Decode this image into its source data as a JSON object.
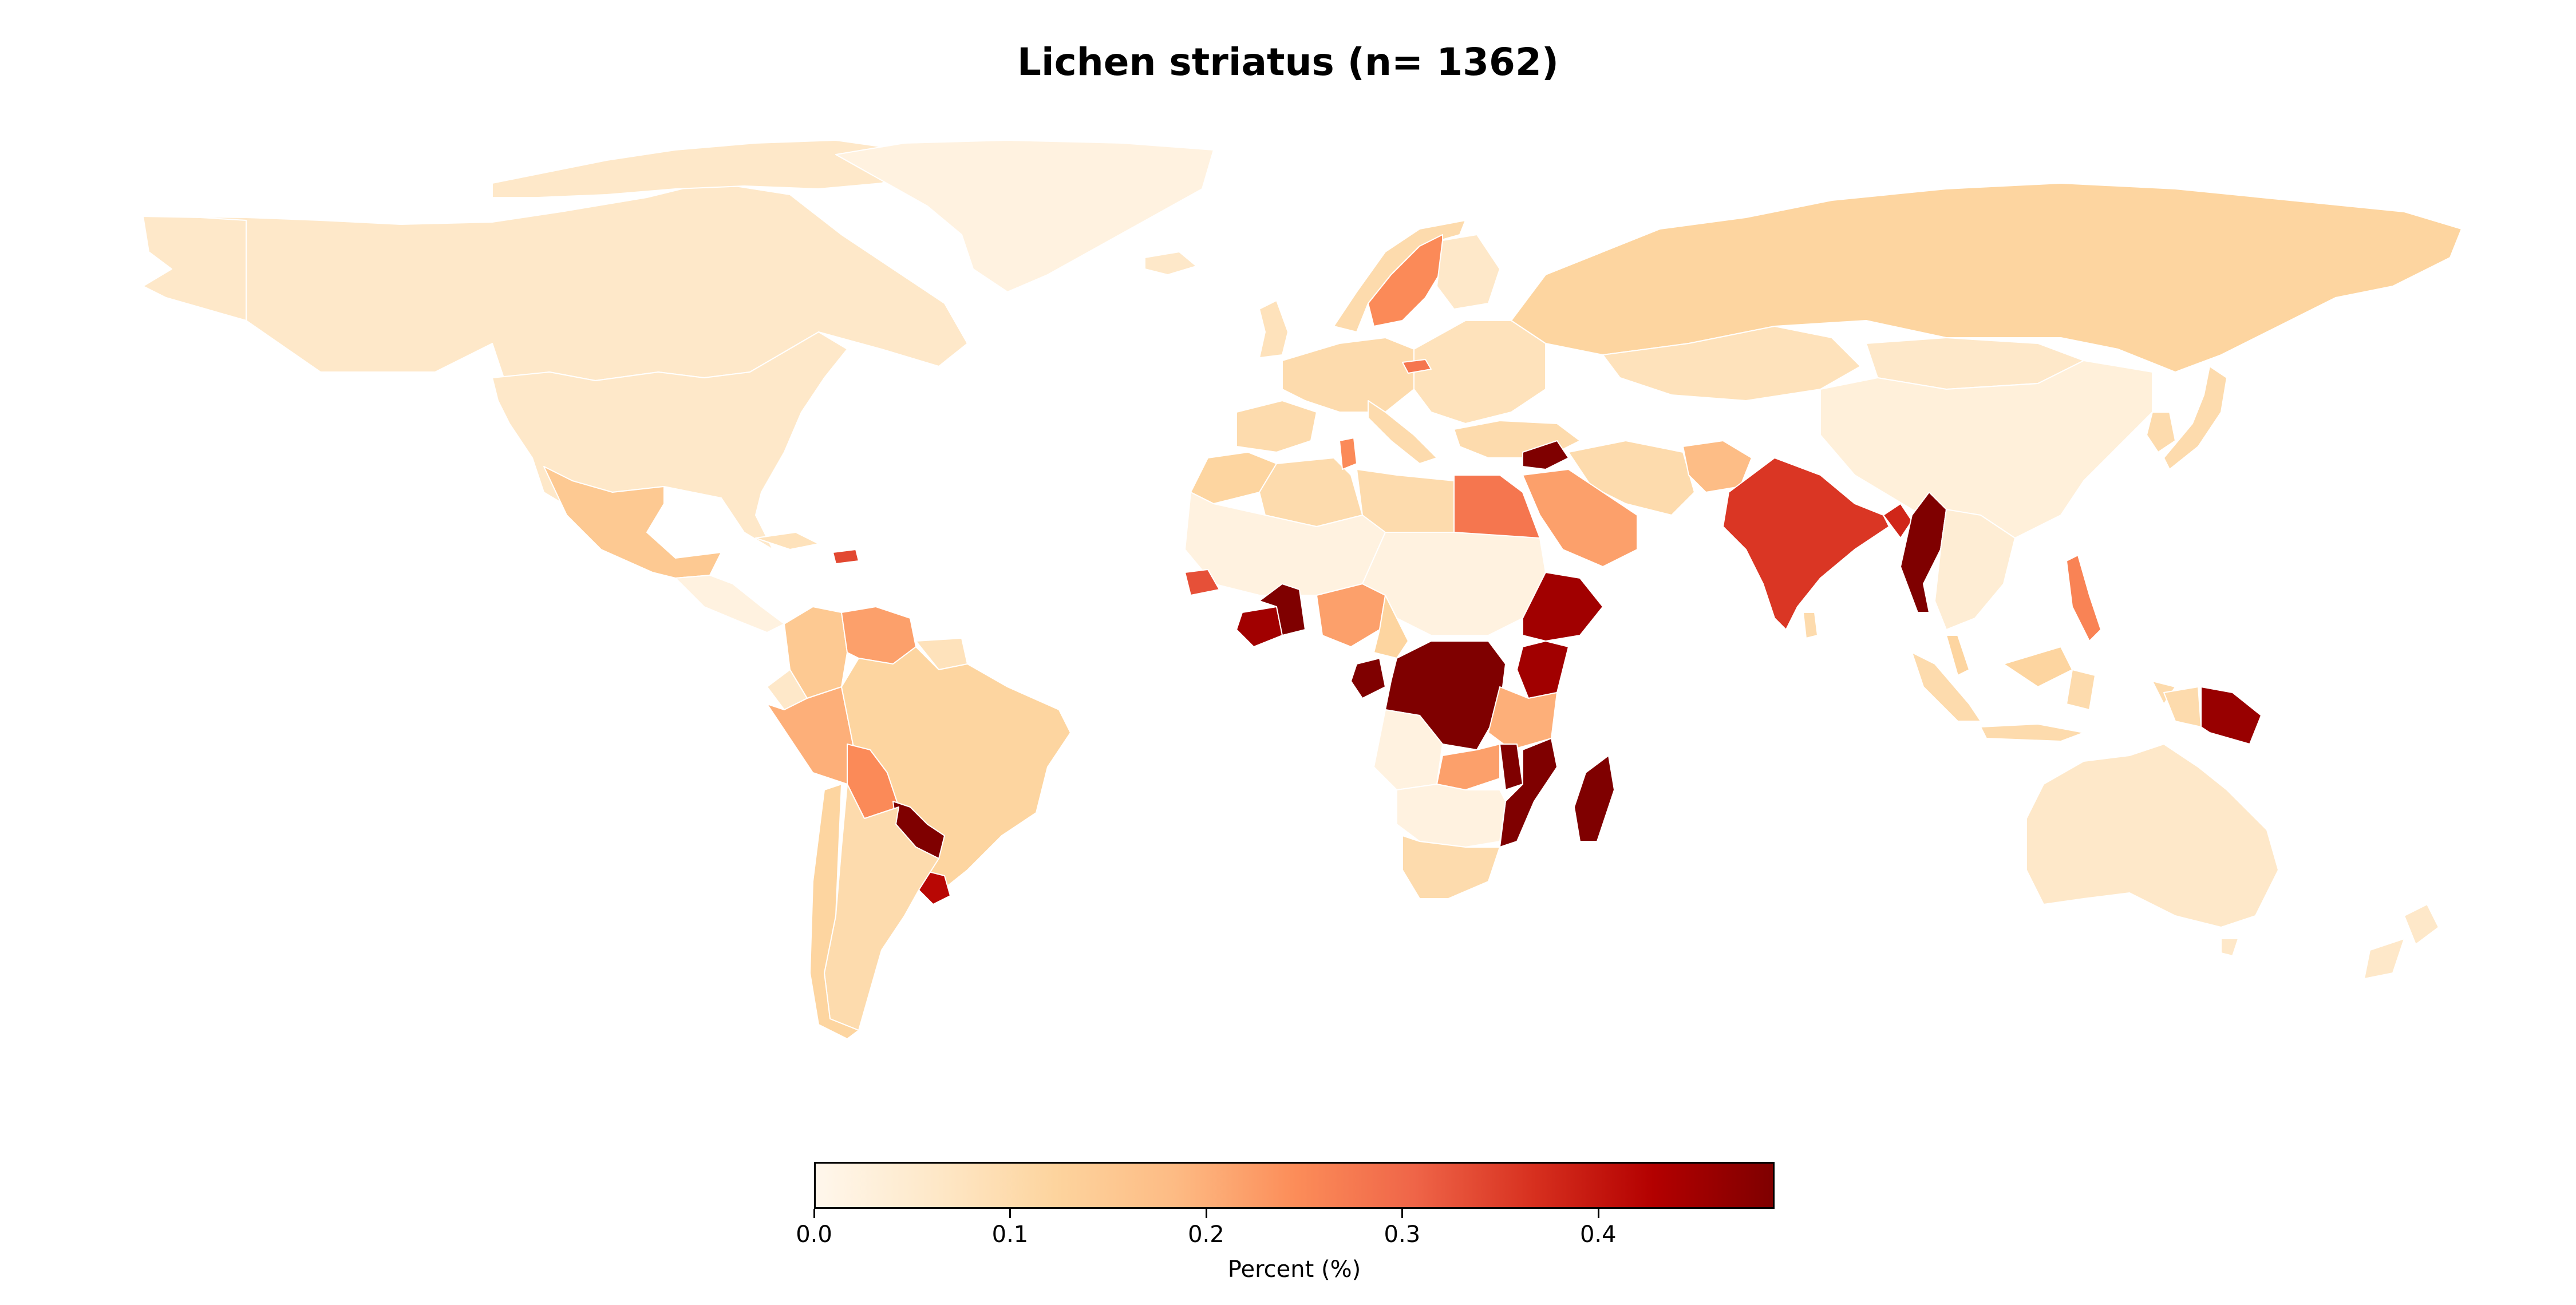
{
  "title": "Lichen striatus (n= 1362)",
  "colorbar": {
    "label": "Percent (%)",
    "min": 0.0,
    "max": 0.49,
    "ticks": [
      {
        "value": 0.0,
        "label": "0.0"
      },
      {
        "value": 0.1,
        "label": "0.1"
      },
      {
        "value": 0.2,
        "label": "0.2"
      },
      {
        "value": 0.3,
        "label": "0.3"
      },
      {
        "value": 0.4,
        "label": "0.4"
      }
    ],
    "colormap": [
      "#fff7ec",
      "#fee8c8",
      "#fdd49e",
      "#fdbb84",
      "#fc8d59",
      "#ef6548",
      "#d7301f",
      "#b30000",
      "#7f0000"
    ]
  },
  "regions": [
    {
      "name": "Canada",
      "value": 0.06
    },
    {
      "name": "United States",
      "value": 0.06
    },
    {
      "name": "Greenland",
      "value": 0.02
    },
    {
      "name": "Mexico",
      "value": 0.15
    },
    {
      "name": "Central America",
      "value": 0.02
    },
    {
      "name": "Cuba",
      "value": 0.08
    },
    {
      "name": "Dominican Republic",
      "value": 0.34
    },
    {
      "name": "Colombia",
      "value": 0.15
    },
    {
      "name": "Venezuela",
      "value": 0.22
    },
    {
      "name": "Guyana",
      "value": 0.08
    },
    {
      "name": "Ecuador",
      "value": 0.06
    },
    {
      "name": "Peru",
      "value": 0.2
    },
    {
      "name": "Brazil",
      "value": 0.12
    },
    {
      "name": "Bolivia",
      "value": 0.25
    },
    {
      "name": "Paraguay",
      "value": 0.49
    },
    {
      "name": "Uruguay",
      "value": 0.42
    },
    {
      "name": "Argentina",
      "value": 0.1
    },
    {
      "name": "Chile",
      "value": 0.12
    },
    {
      "name": "Iceland",
      "value": 0.06
    },
    {
      "name": "United Kingdom",
      "value": 0.08
    },
    {
      "name": "Norway",
      "value": 0.1
    },
    {
      "name": "Sweden",
      "value": 0.25
    },
    {
      "name": "Finland",
      "value": 0.06
    },
    {
      "name": "Western Europe",
      "value": 0.1
    },
    {
      "name": "Spain",
      "value": 0.1
    },
    {
      "name": "Eastern Europe",
      "value": 0.08
    },
    {
      "name": "Hungary",
      "value": 0.28
    },
    {
      "name": "Italy",
      "value": 0.1
    },
    {
      "name": "Turkey",
      "value": 0.1
    },
    {
      "name": "Russia",
      "value": 0.12
    },
    {
      "name": "Kazakhstan",
      "value": 0.08
    },
    {
      "name": "Mongolia",
      "value": 0.06
    },
    {
      "name": "China",
      "value": 0.03
    },
    {
      "name": "Japan",
      "value": 0.1
    },
    {
      "name": "Korea",
      "value": 0.1
    },
    {
      "name": "Syria",
      "value": 0.49
    },
    {
      "name": "Iran",
      "value": 0.1
    },
    {
      "name": "Afghanistan",
      "value": 0.18
    },
    {
      "name": "Saudi Arabia",
      "value": 0.22
    },
    {
      "name": "Egypt",
      "value": 0.28
    },
    {
      "name": "Morocco",
      "value": 0.12
    },
    {
      "name": "Algeria",
      "value": 0.1
    },
    {
      "name": "Tunisia",
      "value": 0.25
    },
    {
      "name": "Libya",
      "value": 0.1
    },
    {
      "name": "West Sahel",
      "value": 0.02
    },
    {
      "name": "Senegal",
      "value": 0.33
    },
    {
      "name": "Ivory Coast",
      "value": 0.45
    },
    {
      "name": "Ghana",
      "value": 0.49
    },
    {
      "name": "Nigeria",
      "value": 0.22
    },
    {
      "name": "Chad-Sudan",
      "value": 0.02
    },
    {
      "name": "Cameroon",
      "value": 0.12
    },
    {
      "name": "Gabon",
      "value": 0.49
    },
    {
      "name": "DR Congo",
      "value": 0.49
    },
    {
      "name": "Ethiopia",
      "value": 0.45
    },
    {
      "name": "Kenya",
      "value": 0.45
    },
    {
      "name": "Tanzania",
      "value": 0.2
    },
    {
      "name": "Zambia",
      "value": 0.22
    },
    {
      "name": "Malawi",
      "value": 0.49
    },
    {
      "name": "Mozambique",
      "value": 0.49
    },
    {
      "name": "Madagascar",
      "value": 0.49
    },
    {
      "name": "Angola",
      "value": 0.02
    },
    {
      "name": "Southern Africa",
      "value": 0.02
    },
    {
      "name": "South Africa",
      "value": 0.1
    },
    {
      "name": "India",
      "value": 0.36
    },
    {
      "name": "Bangladesh",
      "value": 0.38
    },
    {
      "name": "Myanmar",
      "value": 0.49
    },
    {
      "name": "Southeast Asia",
      "value": 0.04
    },
    {
      "name": "Sri Lanka",
      "value": 0.1
    },
    {
      "name": "Philippines",
      "value": 0.26
    },
    {
      "name": "Indonesia",
      "value": 0.1
    },
    {
      "name": "Malaysia",
      "value": 0.12
    },
    {
      "name": "Papua New Guinea",
      "value": 0.46
    },
    {
      "name": "New Guinea West",
      "value": 0.1
    },
    {
      "name": "Australia",
      "value": 0.06
    },
    {
      "name": "New Zealand",
      "value": 0.06
    }
  ]
}
